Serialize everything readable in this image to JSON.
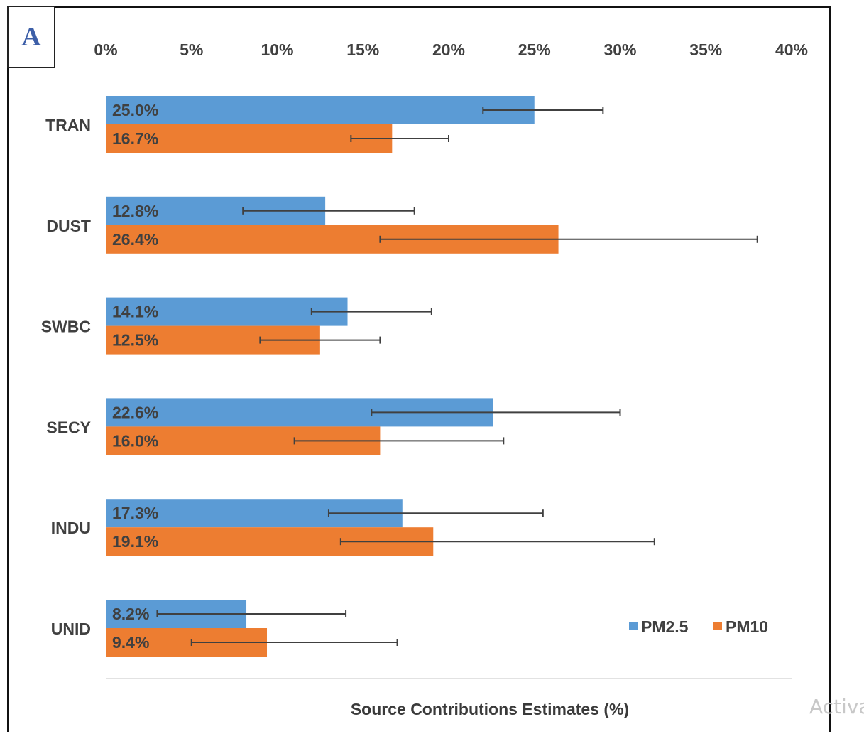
{
  "panel_label": "A",
  "watermark_text": "Activa",
  "chart_data": {
    "type": "bar",
    "orientation": "horizontal",
    "categories": [
      "TRAN",
      "DUST",
      "SWBC",
      "SECY",
      "INDU",
      "UNID"
    ],
    "series": [
      {
        "name": "PM2.5",
        "color": "#5b9bd5",
        "values": [
          25.0,
          12.8,
          14.1,
          22.6,
          17.3,
          8.2
        ],
        "labels": [
          "25.0%",
          "12.8%",
          "14.1%",
          "22.6%",
          "17.3%",
          "8.2%"
        ],
        "error_low": [
          22.0,
          8.0,
          12.0,
          15.5,
          13.0,
          3.0
        ],
        "error_high": [
          29.0,
          18.0,
          19.0,
          30.0,
          25.5,
          14.0
        ]
      },
      {
        "name": "PM10",
        "color": "#ed7d31",
        "values": [
          16.7,
          26.4,
          12.5,
          16.0,
          19.1,
          9.4
        ],
        "labels": [
          "16.7%",
          "26.4%",
          "12.5%",
          "16.0%",
          "19.1%",
          "9.4%"
        ],
        "error_low": [
          14.3,
          16.0,
          9.0,
          11.0,
          13.7,
          5.0
        ],
        "error_high": [
          20.0,
          38.0,
          16.0,
          23.2,
          32.0,
          17.0
        ]
      }
    ],
    "xlim": [
      0,
      40
    ],
    "xticks": [
      0,
      5,
      10,
      15,
      20,
      25,
      30,
      35,
      40
    ],
    "xtick_labels": [
      "0%",
      "5%",
      "10%",
      "15%",
      "20%",
      "25%",
      "30%",
      "35%",
      "40%"
    ],
    "xaxis_position": "top",
    "xlabel": "Source Contributions Estimates (%)",
    "ylabel": "",
    "grid": false,
    "legend_position": "bottom-right",
    "error_bar_color": "#404040"
  }
}
